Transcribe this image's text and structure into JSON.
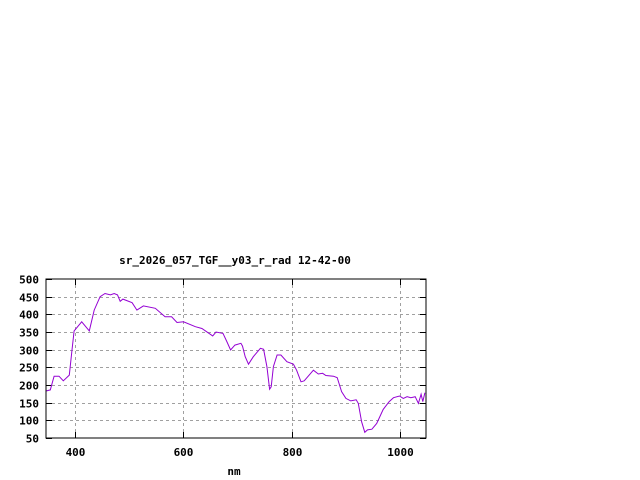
{
  "chart_data": {
    "type": "line",
    "title": "sr_2026_057_TGF__y03_r_rad 12-42-00",
    "xlabel": "nm",
    "ylabel": "",
    "xlim": [
      346,
      1048
    ],
    "ylim": [
      50,
      500
    ],
    "xticks": [
      400,
      600,
      800,
      1000
    ],
    "yticks": [
      50,
      100,
      150,
      200,
      250,
      300,
      350,
      400,
      450,
      500
    ],
    "grid": true,
    "line_color": "#9400d3",
    "series": [
      {
        "x": [
          346,
          354,
          361,
          370,
          378,
          389,
          394,
          398,
          412,
          426,
          435,
          446,
          455,
          465,
          472,
          478,
          483,
          488,
          505,
          514,
          526,
          548,
          566,
          578,
          588,
          600,
          622,
          634,
          654,
          660,
          673,
          680,
          687,
          695,
          706,
          709,
          714,
          720,
          729,
          742,
          748,
          754,
          759,
          762,
          766,
          773,
          780,
          791,
          803,
          809,
          817,
          823,
          840,
          849,
          857,
          863,
          877,
          884,
          892,
          900,
          909,
          919,
          923,
          929,
          935,
          940,
          948,
          957,
          969,
          980,
          988,
          999,
          1006,
          1013,
          1020,
          1028,
          1034,
          1039,
          1042,
          1046
        ],
        "y": [
          183,
          186,
          225,
          225,
          212,
          228,
          299,
          353,
          379,
          353,
          412,
          450,
          459,
          455,
          459,
          455,
          437,
          443,
          433,
          412,
          424,
          417,
          393,
          393,
          377,
          379,
          365,
          360,
          339,
          350,
          346,
          323,
          299,
          313,
          318,
          310,
          280,
          259,
          280,
          304,
          301,
          252,
          188,
          195,
          252,
          285,
          285,
          266,
          259,
          242,
          209,
          212,
          242,
          231,
          233,
          227,
          225,
          221,
          181,
          162,
          155,
          158,
          148,
          96,
          66,
          73,
          75,
          91,
          131,
          153,
          164,
          169,
          162,
          167,
          164,
          167,
          148,
          174,
          153,
          178
        ]
      }
    ]
  }
}
